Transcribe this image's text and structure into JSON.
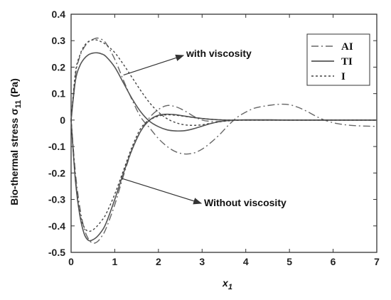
{
  "chart_data": {
    "type": "line",
    "title": "",
    "xlabel": "x",
    "xlabel_subscript": "1",
    "ylabel": "Bio-thermal stress σ",
    "ylabel_subscript": "11",
    "ylabel_unit": "(Pa)",
    "xlim": [
      0,
      7
    ],
    "ylim": [
      -0.5,
      0.4
    ],
    "xticks": [
      "0",
      "1",
      "2",
      "3",
      "4",
      "5",
      "6",
      "7"
    ],
    "yticks": [
      "0.4",
      "0.3",
      "0.2",
      "0.1",
      "0",
      "-0.1",
      "-0.2",
      "-0.3",
      "-0.4",
      "-0.5"
    ],
    "grid": false,
    "legend_position": "top-right",
    "legend": [
      "AI",
      "TI",
      "I"
    ],
    "annotations": [
      {
        "text": "with viscosity",
        "target": [
          1.2,
          0.17
        ]
      },
      {
        "text": "Without viscosity",
        "target": [
          1.15,
          -0.22
        ]
      }
    ],
    "series": [
      {
        "name": "AI",
        "group": "with viscosity",
        "color": "#555555",
        "x": [
          0,
          0.1,
          0.2,
          0.3,
          0.4,
          0.5,
          0.6,
          0.7,
          0.8,
          1.0,
          1.2,
          1.4,
          1.6,
          1.8,
          2.0,
          2.2,
          2.4,
          2.6,
          2.8,
          3.0,
          3.2,
          3.4,
          3.6,
          3.8,
          4.0,
          4.2,
          4.4,
          4.6,
          4.8,
          5.0,
          5.2,
          5.4,
          5.6,
          5.8,
          6.0,
          6.2,
          6.4,
          6.6,
          6.8,
          7.0
        ],
        "y": [
          0,
          0.17,
          0.24,
          0.275,
          0.295,
          0.305,
          0.31,
          0.305,
          0.29,
          0.23,
          0.15,
          0.075,
          0.01,
          -0.03,
          -0.07,
          -0.1,
          -0.12,
          -0.128,
          -0.125,
          -0.11,
          -0.085,
          -0.055,
          -0.02,
          0.01,
          0.03,
          0.045,
          0.052,
          0.057,
          0.06,
          0.058,
          0.048,
          0.033,
          0.015,
          0.0,
          -0.01,
          -0.016,
          -0.02,
          -0.022,
          -0.023,
          -0.024
        ]
      },
      {
        "name": "TI",
        "group": "with viscosity",
        "color": "#555555",
        "x": [
          0,
          0.1,
          0.2,
          0.3,
          0.4,
          0.5,
          0.6,
          0.7,
          0.8,
          1.0,
          1.2,
          1.4,
          1.6,
          1.8,
          2.0,
          2.2,
          2.4,
          2.6,
          2.8,
          3.0,
          3.2,
          3.4,
          3.6,
          3.8,
          4.0,
          4.2,
          4.5,
          5.0,
          5.5,
          6.0,
          6.5,
          7.0
        ],
        "y": [
          0,
          0.15,
          0.205,
          0.232,
          0.247,
          0.253,
          0.254,
          0.25,
          0.24,
          0.2,
          0.14,
          0.08,
          0.03,
          -0.005,
          -0.025,
          -0.037,
          -0.041,
          -0.04,
          -0.033,
          -0.023,
          -0.013,
          -0.006,
          -0.002,
          0.0,
          0.001,
          0.001,
          0.001,
          0,
          0,
          0,
          0,
          0
        ]
      },
      {
        "name": "I",
        "group": "with viscosity",
        "color": "#555555",
        "x": [
          0,
          0.1,
          0.2,
          0.3,
          0.4,
          0.5,
          0.6,
          0.7,
          0.8,
          1.0,
          1.2,
          1.4,
          1.6,
          1.8,
          2.0,
          2.2,
          2.4,
          2.6,
          2.8,
          3.0,
          3.2,
          3.4,
          3.6,
          3.8,
          4.0,
          4.5,
          5.0,
          5.5,
          6.0,
          6.5,
          7.0
        ],
        "y": [
          0,
          0.18,
          0.245,
          0.28,
          0.297,
          0.303,
          0.302,
          0.295,
          0.285,
          0.255,
          0.21,
          0.16,
          0.11,
          0.065,
          0.03,
          0.005,
          -0.01,
          -0.018,
          -0.02,
          -0.018,
          -0.012,
          -0.007,
          -0.003,
          -0.001,
          0,
          0,
          0,
          0,
          0,
          0,
          0
        ]
      },
      {
        "name": "AI",
        "group": "Without viscosity",
        "color": "#555555",
        "x": [
          0,
          0.1,
          0.2,
          0.3,
          0.4,
          0.5,
          0.6,
          0.7,
          0.8,
          1.0,
          1.2,
          1.4,
          1.6,
          1.8,
          2.0,
          2.2,
          2.4,
          2.6,
          2.8,
          3.0,
          3.2,
          3.4,
          3.6,
          3.8,
          4.0,
          4.5,
          5.0,
          5.5,
          6.0,
          6.5,
          7.0
        ],
        "y": [
          0,
          -0.2,
          -0.33,
          -0.41,
          -0.45,
          -0.465,
          -0.46,
          -0.44,
          -0.41,
          -0.32,
          -0.21,
          -0.11,
          -0.04,
          0.01,
          0.04,
          0.055,
          0.05,
          0.035,
          0.015,
          0.0,
          -0.005,
          -0.005,
          -0.002,
          0,
          0,
          0,
          0,
          0,
          0,
          0,
          0
        ]
      },
      {
        "name": "TI",
        "group": "Without viscosity",
        "color": "#555555",
        "x": [
          0,
          0.1,
          0.2,
          0.3,
          0.4,
          0.5,
          0.6,
          0.7,
          0.8,
          1.0,
          1.2,
          1.4,
          1.6,
          1.8,
          2.0,
          2.2,
          2.4,
          2.6,
          2.8,
          3.0,
          3.2,
          3.4,
          3.6,
          3.8,
          4.0,
          4.5,
          5.0,
          5.5,
          6.0,
          6.5,
          7.0
        ],
        "y": [
          0,
          -0.23,
          -0.36,
          -0.43,
          -0.455,
          -0.452,
          -0.44,
          -0.42,
          -0.39,
          -0.3,
          -0.2,
          -0.11,
          -0.04,
          0.0,
          0.018,
          0.022,
          0.02,
          0.015,
          0.01,
          0.006,
          0.003,
          0.001,
          0,
          0,
          0,
          0,
          0,
          0,
          0,
          0,
          0
        ]
      },
      {
        "name": "I",
        "group": "Without viscosity",
        "color": "#555555",
        "x": [
          0,
          0.1,
          0.2,
          0.3,
          0.4,
          0.5,
          0.6,
          0.7,
          0.8,
          1.0,
          1.2,
          1.4,
          1.6,
          1.8,
          2.0,
          2.2,
          2.4,
          2.6,
          2.8,
          3.0,
          3.2,
          3.4,
          3.6,
          3.8,
          4.0,
          4.5,
          5.0,
          5.5,
          6.0,
          6.5,
          7.0
        ],
        "y": [
          0,
          -0.22,
          -0.35,
          -0.405,
          -0.42,
          -0.415,
          -0.4,
          -0.38,
          -0.355,
          -0.28,
          -0.19,
          -0.1,
          -0.03,
          0.0,
          0.015,
          0.02,
          0.018,
          0.014,
          0.01,
          0.006,
          0.003,
          0.001,
          0,
          0,
          0,
          0,
          0,
          0,
          0,
          0,
          0
        ]
      }
    ]
  }
}
